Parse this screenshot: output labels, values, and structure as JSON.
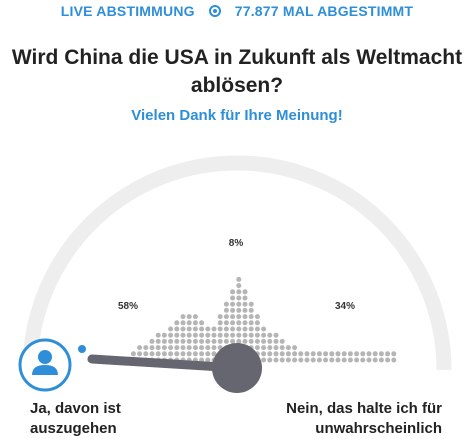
{
  "header": {
    "live_label": "LIVE ABSTIMMUNG",
    "votes_label": "77.877 MAL ABGESTIMMT"
  },
  "question": {
    "line1": "Wird China die USA in Zukunft als Weltmacht",
    "line2": "ablösen?"
  },
  "thanks": "Vielen Dank für Ihre Meinung!",
  "gauge": {
    "yes_percent": "58%",
    "middle_percent": "8%",
    "no_percent": "34%",
    "needle_position": 0.97,
    "colors": {
      "track": "#eeeeee",
      "dots": "#b5b5b5",
      "needle": "#666670",
      "accent": "#2e8fd8"
    }
  },
  "answers": {
    "yes_line1": "Ja, davon ist",
    "yes_line2": "auszugehen",
    "no_line1": "Nein, das halte ich für",
    "no_line2": "unwahrscheinlich"
  },
  "icons": {
    "avatar": "user-avatar-icon"
  }
}
